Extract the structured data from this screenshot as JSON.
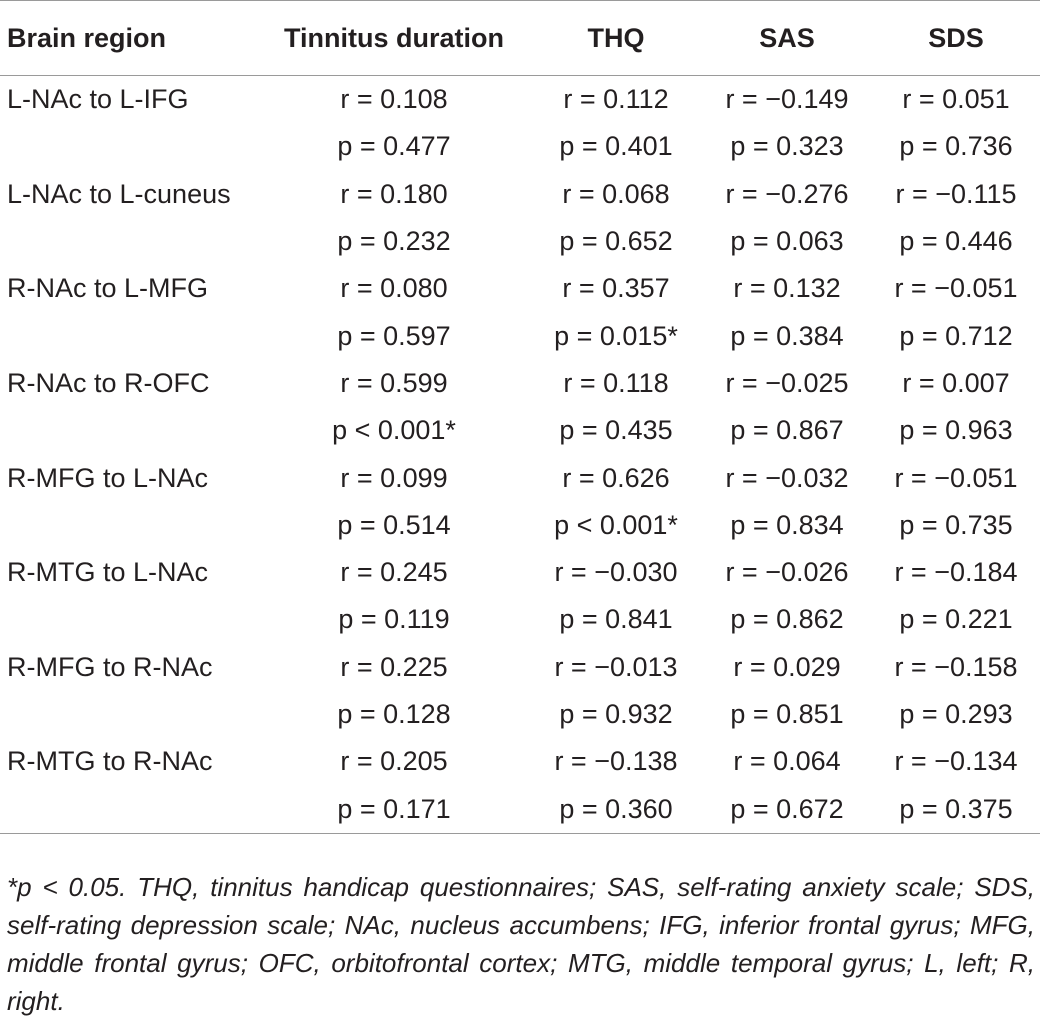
{
  "headers": [
    "Brain region",
    "Tinnitus duration",
    "THQ",
    "SAS",
    "SDS"
  ],
  "rows": [
    [
      "L-NAc to L-IFG",
      "r = 0.108",
      "r = 0.112",
      "r = −0.149",
      "r = 0.051"
    ],
    [
      "",
      "p = 0.477",
      "p = 0.401",
      "p = 0.323",
      "p = 0.736"
    ],
    [
      "L-NAc to L-cuneus",
      "r = 0.180",
      "r = 0.068",
      "r = −0.276",
      "r = −0.115"
    ],
    [
      "",
      "p = 0.232",
      "p = 0.652",
      "p = 0.063",
      "p = 0.446"
    ],
    [
      "R-NAc to L-MFG",
      "r = 0.080",
      "r = 0.357",
      "r = 0.132",
      "r = −0.051"
    ],
    [
      "",
      "p = 0.597",
      "p = 0.015*",
      "p = 0.384",
      "p = 0.712"
    ],
    [
      "R-NAc to R-OFC",
      "r = 0.599",
      "r = 0.118",
      "r = −0.025",
      "r = 0.007"
    ],
    [
      "",
      "p < 0.001*",
      "p = 0.435",
      "p = 0.867",
      "p = 0.963"
    ],
    [
      "R-MFG to L-NAc",
      "r = 0.099",
      "r = 0.626",
      "r = −0.032",
      "r = −0.051"
    ],
    [
      "",
      "p = 0.514",
      "p < 0.001*",
      "p = 0.834",
      "p = 0.735"
    ],
    [
      "R-MTG to L-NAc",
      "r = 0.245",
      "r = −0.030",
      "r = −0.026",
      "r = −0.184"
    ],
    [
      "",
      "p = 0.119",
      "p = 0.841",
      "p = 0.862",
      "p = 0.221"
    ],
    [
      "R-MFG to R-NAc",
      "r = 0.225",
      "r = −0.013",
      "r = 0.029",
      "r = −0.158"
    ],
    [
      "",
      "p = 0.128",
      "p = 0.932",
      "p = 0.851",
      "p = 0.293"
    ],
    [
      "R-MTG to R-NAc",
      "r = 0.205",
      "r = −0.138",
      "r = 0.064",
      "r = −0.134"
    ],
    [
      "",
      "p = 0.171",
      "p = 0.360",
      "p = 0.672",
      "p = 0.375"
    ]
  ],
  "footnote": "*p < 0.05. THQ, tinnitus handicap questionnaires; SAS, self-rating anxiety scale; SDS, self-rating depression scale; NAc, nucleus accumbens; IFG, inferior frontal gyrus; MFG, middle frontal gyrus; OFC, orbitofrontal cortex; MTG, middle temporal gyrus; L, left; R, right."
}
